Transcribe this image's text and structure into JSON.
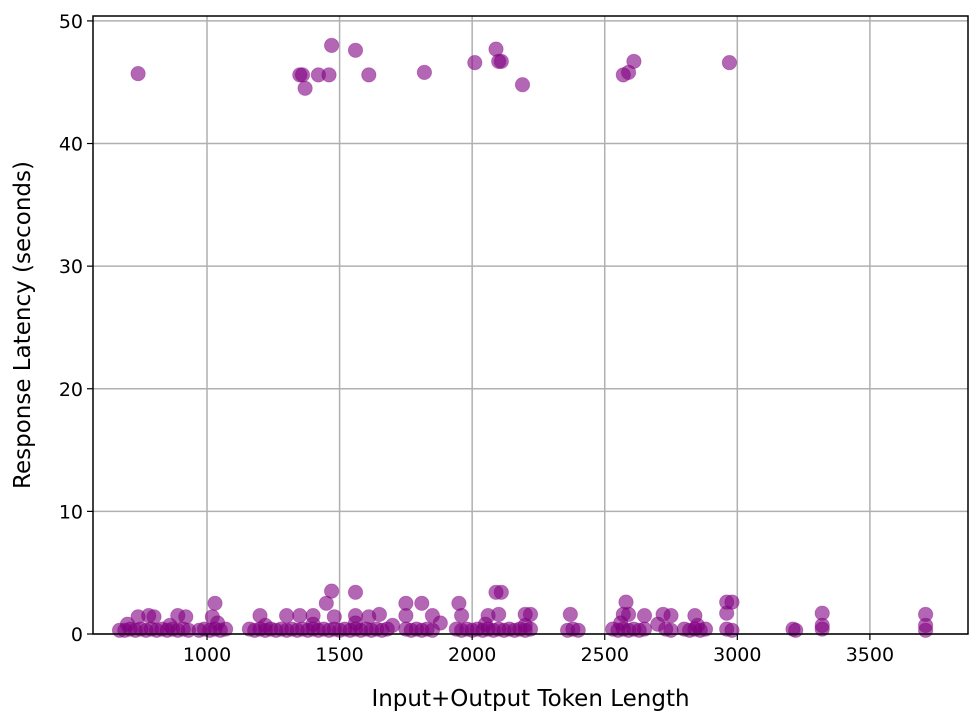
{
  "chart_data": {
    "type": "scatter",
    "title": "",
    "xlabel": "Input+Output Token Length",
    "ylabel": "Response Latency (seconds)",
    "xlim": [
      570,
      3870
    ],
    "ylim": [
      0,
      50.4
    ],
    "xticks": [
      1000,
      1500,
      2000,
      2500,
      3000,
      3500
    ],
    "yticks": [
      0,
      10,
      20,
      30,
      40,
      50
    ],
    "grid": true,
    "legend": "none",
    "marker_color": "#800080",
    "marker_alpha": 0.6,
    "points": [
      [
        740,
        45.7
      ],
      [
        1350,
        45.6
      ],
      [
        1360,
        45.6
      ],
      [
        1370,
        44.5
      ],
      [
        1420,
        45.6
      ],
      [
        1460,
        45.6
      ],
      [
        1470,
        48.0
      ],
      [
        1560,
        47.6
      ],
      [
        1610,
        45.6
      ],
      [
        1820,
        45.8
      ],
      [
        2010,
        46.6
      ],
      [
        2090,
        47.7
      ],
      [
        2100,
        46.7
      ],
      [
        2110,
        46.7
      ],
      [
        2190,
        44.8
      ],
      [
        2570,
        45.6
      ],
      [
        2590,
        45.8
      ],
      [
        2610,
        46.7
      ],
      [
        2970,
        46.6
      ],
      [
        1030,
        2.5
      ],
      [
        1450,
        2.5
      ],
      [
        1470,
        3.5
      ],
      [
        1560,
        3.4
      ],
      [
        1750,
        2.5
      ],
      [
        1810,
        2.5
      ],
      [
        1950,
        2.5
      ],
      [
        2090,
        3.4
      ],
      [
        2110,
        3.4
      ],
      [
        2580,
        2.6
      ],
      [
        2960,
        2.6
      ],
      [
        2980,
        2.6
      ],
      [
        740,
        1.4
      ],
      [
        780,
        1.5
      ],
      [
        800,
        1.4
      ],
      [
        890,
        1.5
      ],
      [
        920,
        1.4
      ],
      [
        1020,
        1.4
      ],
      [
        1200,
        1.5
      ],
      [
        1300,
        1.5
      ],
      [
        1350,
        1.5
      ],
      [
        1400,
        1.5
      ],
      [
        1480,
        1.4
      ],
      [
        1560,
        1.5
      ],
      [
        1610,
        1.4
      ],
      [
        1650,
        1.6
      ],
      [
        1750,
        1.5
      ],
      [
        1850,
        1.5
      ],
      [
        1960,
        1.5
      ],
      [
        2060,
        1.5
      ],
      [
        2100,
        1.6
      ],
      [
        2200,
        1.6
      ],
      [
        2220,
        1.6
      ],
      [
        2370,
        1.6
      ],
      [
        2570,
        1.6
      ],
      [
        2590,
        1.6
      ],
      [
        2650,
        1.5
      ],
      [
        2720,
        1.6
      ],
      [
        2750,
        1.5
      ],
      [
        2840,
        1.5
      ],
      [
        2960,
        1.7
      ],
      [
        3320,
        1.7
      ],
      [
        3710,
        1.6
      ],
      [
        700,
        0.8
      ],
      [
        860,
        0.7
      ],
      [
        1040,
        0.9
      ],
      [
        1220,
        0.7
      ],
      [
        1400,
        0.8
      ],
      [
        1560,
        0.9
      ],
      [
        1700,
        0.7
      ],
      [
        1880,
        0.9
      ],
      [
        2050,
        0.8
      ],
      [
        2200,
        0.7
      ],
      [
        2560,
        0.9
      ],
      [
        2700,
        0.8
      ],
      [
        2850,
        0.7
      ],
      [
        3320,
        0.7
      ],
      [
        3710,
        0.7
      ],
      [
        670,
        0.3
      ],
      [
        690,
        0.3
      ],
      [
        710,
        0.4
      ],
      [
        730,
        0.3
      ],
      [
        750,
        0.4
      ],
      [
        770,
        0.3
      ],
      [
        790,
        0.4
      ],
      [
        810,
        0.3
      ],
      [
        830,
        0.4
      ],
      [
        850,
        0.3
      ],
      [
        870,
        0.4
      ],
      [
        890,
        0.3
      ],
      [
        910,
        0.4
      ],
      [
        930,
        0.3
      ],
      [
        970,
        0.3
      ],
      [
        990,
        0.4
      ],
      [
        1010,
        0.3
      ],
      [
        1030,
        0.4
      ],
      [
        1050,
        0.3
      ],
      [
        1070,
        0.4
      ],
      [
        1160,
        0.4
      ],
      [
        1180,
        0.3
      ],
      [
        1200,
        0.4
      ],
      [
        1220,
        0.3
      ],
      [
        1240,
        0.4
      ],
      [
        1260,
        0.3
      ],
      [
        1280,
        0.4
      ],
      [
        1300,
        0.3
      ],
      [
        1320,
        0.4
      ],
      [
        1340,
        0.3
      ],
      [
        1360,
        0.4
      ],
      [
        1380,
        0.3
      ],
      [
        1400,
        0.4
      ],
      [
        1420,
        0.3
      ],
      [
        1440,
        0.4
      ],
      [
        1460,
        0.3
      ],
      [
        1480,
        0.4
      ],
      [
        1500,
        0.3
      ],
      [
        1520,
        0.4
      ],
      [
        1540,
        0.3
      ],
      [
        1560,
        0.4
      ],
      [
        1580,
        0.3
      ],
      [
        1600,
        0.4
      ],
      [
        1620,
        0.3
      ],
      [
        1640,
        0.4
      ],
      [
        1660,
        0.3
      ],
      [
        1680,
        0.4
      ],
      [
        1750,
        0.4
      ],
      [
        1770,
        0.3
      ],
      [
        1790,
        0.4
      ],
      [
        1810,
        0.3
      ],
      [
        1830,
        0.4
      ],
      [
        1850,
        0.3
      ],
      [
        1940,
        0.4
      ],
      [
        1960,
        0.3
      ],
      [
        1980,
        0.4
      ],
      [
        2000,
        0.3
      ],
      [
        2020,
        0.4
      ],
      [
        2040,
        0.3
      ],
      [
        2060,
        0.4
      ],
      [
        2080,
        0.3
      ],
      [
        2100,
        0.4
      ],
      [
        2120,
        0.3
      ],
      [
        2140,
        0.4
      ],
      [
        2160,
        0.3
      ],
      [
        2180,
        0.4
      ],
      [
        2200,
        0.3
      ],
      [
        2220,
        0.4
      ],
      [
        2360,
        0.3
      ],
      [
        2380,
        0.4
      ],
      [
        2400,
        0.3
      ],
      [
        2530,
        0.4
      ],
      [
        2550,
        0.3
      ],
      [
        2570,
        0.4
      ],
      [
        2590,
        0.3
      ],
      [
        2610,
        0.4
      ],
      [
        2630,
        0.3
      ],
      [
        2650,
        0.4
      ],
      [
        2730,
        0.4
      ],
      [
        2750,
        0.3
      ],
      [
        2800,
        0.4
      ],
      [
        2820,
        0.3
      ],
      [
        2840,
        0.4
      ],
      [
        2860,
        0.3
      ],
      [
        2880,
        0.4
      ],
      [
        2960,
        0.4
      ],
      [
        2980,
        0.3
      ],
      [
        3210,
        0.4
      ],
      [
        3220,
        0.3
      ],
      [
        3320,
        0.4
      ],
      [
        3710,
        0.3
      ]
    ]
  }
}
